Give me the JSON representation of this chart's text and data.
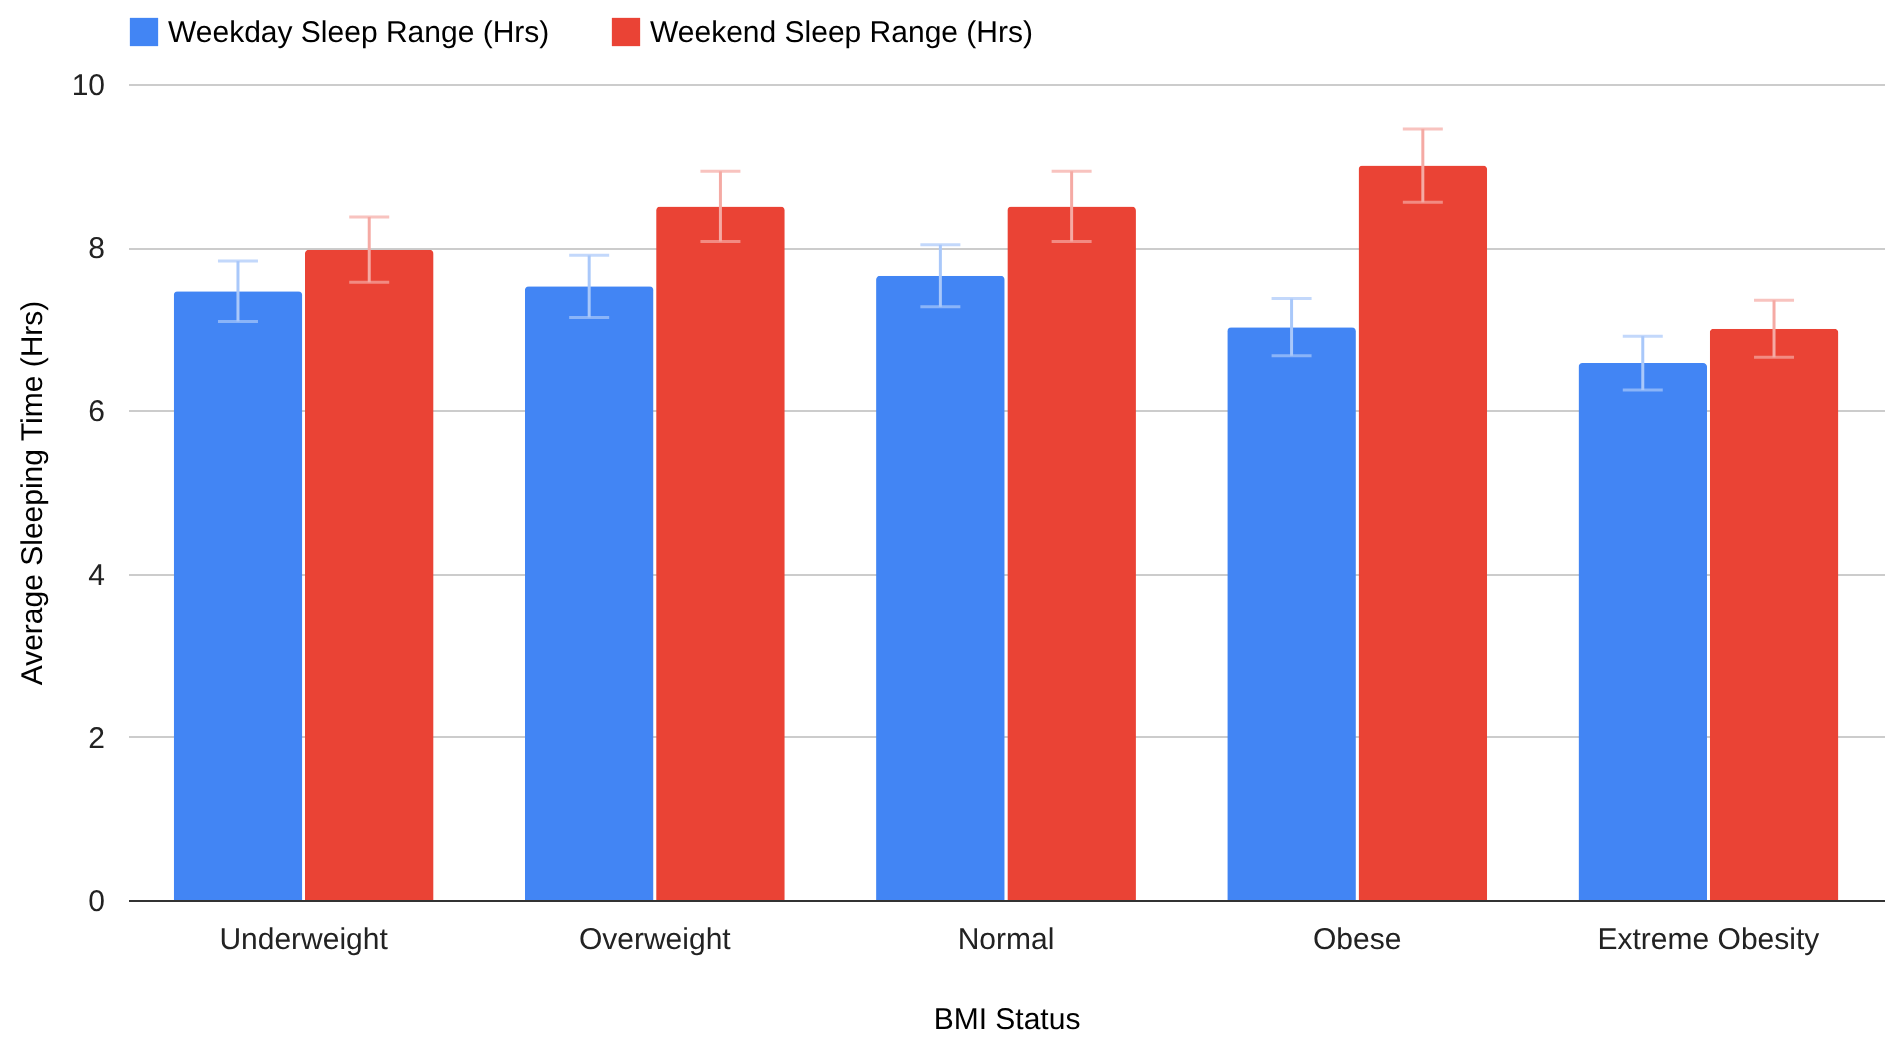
{
  "chart_data": {
    "type": "bar",
    "xlabel": "BMI Status",
    "ylabel": "Average Sleeping Time (Hrs)",
    "categories": [
      "Underweight",
      "Overweight",
      "Normal",
      "Obese",
      "Extreme Obesity"
    ],
    "series": [
      {
        "name": "Weekday Sleep Range (Hrs)",
        "color": "#4285f4",
        "values": [
          7.46,
          7.52,
          7.65,
          7.02,
          6.58
        ],
        "errors": [
          0.37,
          0.38,
          0.38,
          0.35,
          0.33
        ]
      },
      {
        "name": "Weekend Sleep Range (Hrs)",
        "color": "#ea4335",
        "values": [
          7.97,
          8.5,
          8.5,
          9.0,
          7.0
        ],
        "errors": [
          0.4,
          0.43,
          0.43,
          0.45,
          0.35
        ]
      }
    ],
    "ylim": [
      0,
      10
    ],
    "yticks": [
      0,
      2,
      4,
      6,
      8,
      10
    ],
    "grid": "y",
    "legend": "top"
  }
}
